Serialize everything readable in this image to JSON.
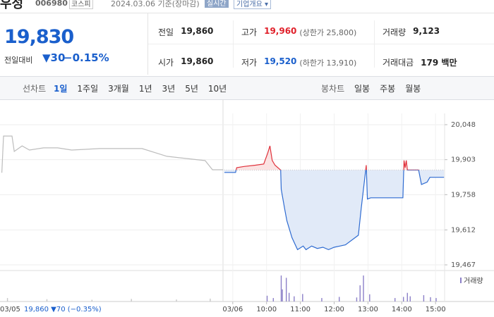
{
  "header": {
    "name": "우성",
    "code": "006980",
    "market": "코스피",
    "date": "2024.03.06 기준(장마감)",
    "realtime": "실시간",
    "company_info": "기업개요 ▾"
  },
  "price": {
    "current": "19,830",
    "change_label": "전일대비",
    "change": "▼30",
    "change_rate": "−0.15%"
  },
  "quote_table": {
    "rows": [
      [
        {
          "label": "전일",
          "value": "19,860"
        },
        {
          "label": "고가",
          "value": "19,960",
          "note": "(상한가 25,800)"
        },
        {
          "label": "거래량",
          "value": "9,123"
        }
      ],
      [
        {
          "label": "시가",
          "value": "19,860"
        },
        {
          "label": "저가",
          "value": "19,520",
          "note": "(하한가 13,910)"
        },
        {
          "label": "거래대금",
          "value": "179 백만"
        }
      ]
    ]
  },
  "toolbar": {
    "line_chart": "선차트",
    "periods": [
      "1일",
      "1주일",
      "3개월",
      "1년",
      "3년",
      "5년",
      "10년"
    ],
    "candle_chart": "봉차트",
    "candle_periods": [
      "일봉",
      "주봉",
      "월봉"
    ]
  },
  "chart": {
    "type": "line",
    "ylim": [
      19467,
      20048
    ],
    "yticks": [
      {
        "value": 20048,
        "label": "20,048"
      },
      {
        "value": 19903,
        "label": "19,903"
      },
      {
        "value": 19758,
        "label": "19,758"
      },
      {
        "value": 19612,
        "label": "19,612"
      },
      {
        "value": 19467,
        "label": "19,467"
      }
    ],
    "xlim": [
      -412,
      460
    ],
    "xticks": [
      {
        "value": 0,
        "label": "03/06"
      },
      {
        "value": 60,
        "label": "10:00"
      },
      {
        "value": 120,
        "label": "11:00"
      },
      {
        "value": 180,
        "label": "12:00"
      },
      {
        "value": 240,
        "label": "13:00"
      },
      {
        "value": 300,
        "label": "14:00"
      },
      {
        "value": 360,
        "label": "15:00"
      }
    ],
    "reference": 19860,
    "grid": true,
    "previous": {
      "color": "#bdbdbd",
      "x": [
        -410,
        -407,
        -392,
        -388,
        -374,
        -361,
        -336,
        -311,
        -286,
        -236,
        -161,
        -117,
        -49,
        -36,
        -17
      ],
      "values": [
        19849,
        20001,
        20001,
        19937,
        19960,
        19943,
        19952,
        19952,
        19943,
        19949,
        19949,
        19917,
        19899,
        19861,
        19861
      ]
    },
    "today": {
      "up_color": "#e0313b",
      "down_color": "#2e6bd1",
      "up_fill": "#fbe3e3",
      "down_fill": "#e1eaf8",
      "x": [
        -15,
        5,
        7,
        20,
        40,
        55,
        62,
        66,
        70,
        75,
        85,
        86,
        92,
        96,
        105,
        115,
        125,
        130,
        140,
        150,
        160,
        170,
        180,
        190,
        200,
        223,
        228,
        237,
        239,
        245,
        270,
        302,
        304,
        306,
        308,
        310,
        330,
        335,
        345,
        350,
        355,
        375
      ],
      "values": [
        19850,
        19850,
        19870,
        19875,
        19880,
        19885,
        19930,
        19960,
        19900,
        19880,
        19860,
        19780,
        19700,
        19650,
        19580,
        19530,
        19545,
        19530,
        19545,
        19535,
        19540,
        19530,
        19540,
        19545,
        19550,
        19590,
        19700,
        19880,
        19740,
        19745,
        19745,
        19745,
        19900,
        19870,
        19900,
        19860,
        19860,
        19800,
        19810,
        19830,
        19830,
        19830
      ]
    },
    "volume": {
      "name": "거래량",
      "color": "#8c80c8",
      "prev_color": "#c8c8c8",
      "vlim": [
        0,
        1000
      ],
      "x": [
        -400,
        -330,
        -250,
        -180,
        -100,
        -40,
        61,
        72,
        86,
        88,
        95,
        100,
        109,
        124,
        158,
        189,
        220,
        226,
        232,
        243,
        288,
        303,
        310,
        315,
        339,
        351,
        361
      ],
      "values": [
        120,
        80,
        60,
        90,
        70,
        100,
        200,
        120,
        900,
        420,
        820,
        300,
        180,
        260,
        120,
        160,
        140,
        560,
        900,
        250,
        120,
        160,
        300,
        180,
        220,
        150,
        120
      ]
    },
    "readout": {
      "date": "03/05",
      "text": "19,860 ▼70 (−0.35%)"
    }
  }
}
